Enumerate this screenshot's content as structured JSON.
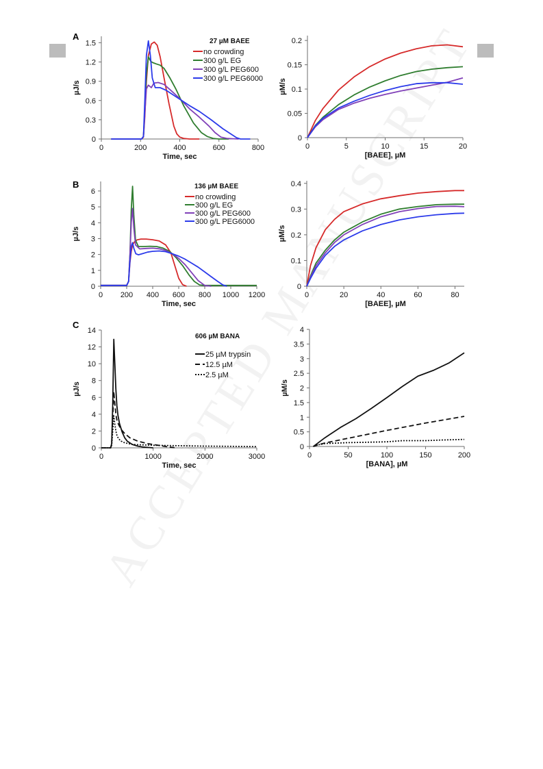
{
  "figure": {
    "panel_labels": [
      "A",
      "B",
      "C"
    ],
    "watermark": "ACCEPTED MANUSCRIPT"
  },
  "chart_data": [
    {
      "id": "A-left",
      "type": "line",
      "title": "27 µM BAEE",
      "xlabel": "Time, sec",
      "ylabel": "µJ/s",
      "xlim": [
        0,
        800
      ],
      "ylim": [
        0,
        1.6
      ],
      "xticks": [
        0,
        200,
        400,
        600,
        800
      ],
      "yticks": [
        0,
        0.3,
        0.6,
        0.9,
        1.2,
        1.5
      ],
      "legend": "top-right",
      "grid": false,
      "series": [
        {
          "name": "no crowding",
          "color": "#d62a2a",
          "dash": "",
          "x": [
            50,
            150,
            205,
            215,
            222,
            230,
            240,
            255,
            270,
            285,
            300,
            320,
            345,
            370,
            385,
            400,
            420,
            450,
            500
          ],
          "y": [
            0,
            0,
            0,
            0.03,
            0.35,
            0.9,
            1.3,
            1.48,
            1.51,
            1.46,
            1.28,
            0.95,
            0.55,
            0.2,
            0.08,
            0.03,
            0.01,
            0,
            0
          ]
        },
        {
          "name": "300 g/L EG",
          "color": "#2f7d2f",
          "dash": "",
          "x": [
            50,
            150,
            205,
            215,
            222,
            230,
            240,
            252,
            262,
            280,
            300,
            320,
            350,
            380,
            420,
            470,
            510,
            540,
            570,
            600,
            650
          ],
          "y": [
            0,
            0,
            0,
            0.04,
            0.45,
            1.0,
            1.28,
            1.21,
            1.19,
            1.17,
            1.15,
            1.1,
            0.95,
            0.78,
            0.52,
            0.25,
            0.1,
            0.04,
            0.01,
            0,
            0
          ]
        },
        {
          "name": "300 g/L PEG600",
          "color": "#8040b8",
          "dash": "",
          "x": [
            50,
            150,
            205,
            215,
            222,
            230,
            240,
            255,
            268,
            290,
            320,
            350,
            400,
            450,
            500,
            550,
            580,
            610,
            640,
            700
          ],
          "y": [
            0,
            0,
            0,
            0.04,
            0.4,
            0.78,
            0.84,
            0.8,
            0.87,
            0.88,
            0.85,
            0.77,
            0.63,
            0.47,
            0.34,
            0.2,
            0.1,
            0.03,
            0.01,
            0
          ]
        },
        {
          "name": "300 g/L PEG6000",
          "color": "#2b3aea",
          "dash": "",
          "x": [
            50,
            150,
            205,
            215,
            222,
            230,
            240,
            250,
            260,
            275,
            300,
            330,
            360,
            400,
            450,
            500,
            560,
            620,
            660,
            690,
            710,
            760
          ],
          "y": [
            0,
            0,
            0,
            0.04,
            0.6,
            1.3,
            1.53,
            1.3,
            0.95,
            0.8,
            0.8,
            0.76,
            0.7,
            0.62,
            0.52,
            0.43,
            0.3,
            0.16,
            0.08,
            0.02,
            0,
            0
          ]
        }
      ]
    },
    {
      "id": "A-right",
      "type": "line",
      "title": "",
      "xlabel": "[BAEE], µM",
      "ylabel": "µM/s",
      "xlim": [
        0,
        20
      ],
      "ylim": [
        0,
        0.21
      ],
      "xticks": [
        0,
        5,
        10,
        15,
        20
      ],
      "yticks": [
        0,
        0.05,
        0.1,
        0.15,
        0.2
      ],
      "grid": false,
      "series": [
        {
          "name": "",
          "color": "#d62a2a",
          "dash": "",
          "x": [
            0,
            1,
            2,
            4,
            6,
            8,
            10,
            12,
            14,
            16,
            18,
            20
          ],
          "y": [
            0,
            0.035,
            0.06,
            0.098,
            0.125,
            0.146,
            0.162,
            0.174,
            0.183,
            0.189,
            0.191,
            0.187
          ]
        },
        {
          "name": "",
          "color": "#2f7d2f",
          "dash": "",
          "x": [
            0,
            1,
            2,
            4,
            6,
            8,
            10,
            12,
            14,
            16,
            18,
            20
          ],
          "y": [
            0,
            0.025,
            0.042,
            0.068,
            0.088,
            0.104,
            0.117,
            0.128,
            0.136,
            0.141,
            0.144,
            0.146
          ]
        },
        {
          "name": "",
          "color": "#8040b8",
          "dash": "",
          "x": [
            0,
            1,
            2,
            4,
            6,
            8,
            10,
            12,
            14,
            16,
            18,
            20
          ],
          "y": [
            0,
            0.022,
            0.037,
            0.058,
            0.071,
            0.081,
            0.089,
            0.096,
            0.102,
            0.108,
            0.114,
            0.123
          ]
        },
        {
          "name": "",
          "color": "#2b3aea",
          "dash": "",
          "x": [
            0,
            1,
            2,
            4,
            6,
            8,
            10,
            12,
            14,
            16,
            18,
            20
          ],
          "y": [
            0,
            0.024,
            0.04,
            0.061,
            0.075,
            0.087,
            0.097,
            0.105,
            0.111,
            0.113,
            0.113,
            0.11
          ]
        }
      ]
    },
    {
      "id": "B-left",
      "type": "line",
      "title": "136 µM BAEE",
      "xlabel": "Time, sec",
      "ylabel": "µJ/s",
      "xlim": [
        0,
        1200
      ],
      "ylim": [
        0,
        6.6
      ],
      "xticks": [
        0,
        200,
        400,
        600,
        800,
        1000,
        1200
      ],
      "yticks": [
        0,
        1,
        2,
        3,
        4,
        5,
        6
      ],
      "legend": "top-right",
      "grid": false,
      "series": [
        {
          "name": "no crowding",
          "color": "#d62a2a",
          "dash": "",
          "x": [
            0,
            100,
            200,
            215,
            225,
            235,
            245,
            260,
            280,
            310,
            350,
            400,
            450,
            500,
            540,
            570,
            600,
            630,
            660
          ],
          "y": [
            0.05,
            0.05,
            0.05,
            0.3,
            1.5,
            2.2,
            2.6,
            2.8,
            2.92,
            2.97,
            2.97,
            2.93,
            2.85,
            2.6,
            2.1,
            1.3,
            0.5,
            0.1,
            0
          ]
        },
        {
          "name": "300 g/L EG",
          "color": "#2f7d2f",
          "dash": "",
          "x": [
            0,
            100,
            200,
            215,
            225,
            235,
            245,
            255,
            268,
            290,
            330,
            380,
            430,
            480,
            530,
            580,
            630,
            680,
            720,
            760,
            800,
            1000,
            1200
          ],
          "y": [
            0.05,
            0.05,
            0.05,
            0.3,
            2.0,
            4.8,
            6.3,
            4.5,
            2.9,
            2.5,
            2.5,
            2.52,
            2.5,
            2.4,
            2.2,
            1.8,
            1.3,
            0.7,
            0.3,
            0.08,
            0.05,
            0.05,
            0.05
          ]
        },
        {
          "name": "300 g/L PEG600",
          "color": "#8040b8",
          "dash": "",
          "x": [
            0,
            100,
            200,
            215,
            225,
            235,
            245,
            255,
            268,
            300,
            350,
            400,
            450,
            500,
            550,
            600,
            650,
            700,
            750,
            800,
            850
          ],
          "y": [
            0.05,
            0.05,
            0.05,
            0.3,
            2.0,
            4.0,
            4.9,
            3.7,
            2.6,
            2.35,
            2.38,
            2.4,
            2.36,
            2.25,
            2.05,
            1.75,
            1.35,
            0.85,
            0.35,
            0.05,
            0
          ]
        },
        {
          "name": "300 g/L PEG6000",
          "color": "#2b3aea",
          "dash": "",
          "x": [
            0,
            100,
            200,
            215,
            225,
            235,
            245,
            255,
            270,
            290,
            320,
            360,
            400,
            450,
            500,
            550,
            600,
            650,
            700,
            750,
            800,
            850,
            900,
            940,
            970
          ],
          "y": [
            0.05,
            0.05,
            0.05,
            0.3,
            1.6,
            2.5,
            2.75,
            2.4,
            2.05,
            1.98,
            2.05,
            2.15,
            2.2,
            2.22,
            2.18,
            2.05,
            1.9,
            1.7,
            1.45,
            1.2,
            0.9,
            0.6,
            0.3,
            0.08,
            0
          ]
        }
      ]
    },
    {
      "id": "B-right",
      "type": "line",
      "title": "",
      "xlabel": "[BAEE], µM",
      "ylabel": "µM/s",
      "xlim": [
        0,
        85
      ],
      "ylim": [
        0,
        0.41
      ],
      "xticks": [
        0,
        20,
        40,
        60,
        80
      ],
      "yticks": [
        0,
        0.1,
        0.2,
        0.3,
        0.4
      ],
      "grid": false,
      "series": [
        {
          "name": "",
          "color": "#d62a2a",
          "dash": "",
          "x": [
            0,
            2,
            5,
            10,
            15,
            20,
            30,
            40,
            50,
            60,
            70,
            80,
            85
          ],
          "y": [
            0,
            0.08,
            0.15,
            0.22,
            0.26,
            0.29,
            0.32,
            0.34,
            0.352,
            0.362,
            0.368,
            0.372,
            0.372
          ]
        },
        {
          "name": "",
          "color": "#2f7d2f",
          "dash": "",
          "x": [
            0,
            2,
            5,
            10,
            15,
            20,
            30,
            40,
            50,
            60,
            70,
            80,
            85
          ],
          "y": [
            0,
            0.04,
            0.09,
            0.14,
            0.18,
            0.21,
            0.25,
            0.28,
            0.3,
            0.31,
            0.317,
            0.319,
            0.319
          ]
        },
        {
          "name": "",
          "color": "#8040b8",
          "dash": "",
          "x": [
            0,
            2,
            5,
            10,
            15,
            20,
            30,
            40,
            50,
            60,
            70,
            80,
            85
          ],
          "y": [
            0,
            0.035,
            0.08,
            0.13,
            0.17,
            0.2,
            0.24,
            0.27,
            0.29,
            0.302,
            0.31,
            0.311,
            0.309
          ]
        },
        {
          "name": "",
          "color": "#2b3aea",
          "dash": "",
          "x": [
            0,
            2,
            5,
            10,
            15,
            20,
            30,
            40,
            50,
            60,
            70,
            80,
            85
          ],
          "y": [
            0,
            0.03,
            0.07,
            0.12,
            0.155,
            0.18,
            0.215,
            0.24,
            0.258,
            0.27,
            0.278,
            0.283,
            0.284
          ]
        }
      ]
    },
    {
      "id": "C-left",
      "type": "line",
      "title": "606 µM BANA",
      "xlabel": "Time, sec",
      "ylabel": "µJ/s",
      "xlim": [
        0,
        3000
      ],
      "ylim": [
        0,
        14
      ],
      "xticks": [
        0,
        1000,
        2000,
        3000
      ],
      "yticks": [
        0,
        2,
        4,
        6,
        8,
        10,
        12,
        14
      ],
      "legend": "top-right",
      "grid": false,
      "series": [
        {
          "name": "25 µM trypsin",
          "color": "#111111",
          "dash": "",
          "x": [
            0,
            180,
            200,
            220,
            240,
            260,
            280,
            300,
            320,
            350,
            400,
            450,
            500,
            600,
            700,
            800,
            900,
            1000
          ],
          "y": [
            0,
            0,
            0.5,
            5,
            12.9,
            10,
            7,
            5,
            3.9,
            2.9,
            1.9,
            1.2,
            0.8,
            0.4,
            0.2,
            0.1,
            0.05,
            0
          ]
        },
        {
          "name": "12.5 µM",
          "color": "#111111",
          "dash": "7,4",
          "x": [
            0,
            180,
            200,
            220,
            240,
            260,
            280,
            300,
            330,
            380,
            450,
            550,
            700,
            900,
            1100,
            1300,
            1450
          ],
          "y": [
            0,
            0,
            0.5,
            3.5,
            6.7,
            5.2,
            4.0,
            3.3,
            2.8,
            2.2,
            1.7,
            1.2,
            0.8,
            0.5,
            0.3,
            0.1,
            0
          ]
        },
        {
          "name": "2.5 µM",
          "color": "#111111",
          "dash": "2,2",
          "x": [
            0,
            180,
            200,
            220,
            240,
            260,
            280,
            300,
            330,
            380,
            450,
            600,
            800,
            1000,
            1500,
            2000,
            2500,
            3000
          ],
          "y": [
            0,
            0,
            0.3,
            2.0,
            3.8,
            2.8,
            2.0,
            1.5,
            1.1,
            0.8,
            0.6,
            0.4,
            0.35,
            0.3,
            0.25,
            0.2,
            0.18,
            0.15
          ]
        }
      ]
    },
    {
      "id": "C-right",
      "type": "line",
      "title": "",
      "xlabel": "[BANA], µM",
      "ylabel": "µM/s",
      "xlim": [
        0,
        200
      ],
      "ylim": [
        0,
        4
      ],
      "xticks": [
        0,
        50,
        100,
        150,
        200
      ],
      "yticks": [
        0,
        0.5,
        1,
        1.5,
        2,
        2.5,
        3,
        3.5,
        4
      ],
      "grid": false,
      "series": [
        {
          "name": "",
          "color": "#111111",
          "dash": "",
          "x": [
            5,
            10,
            20,
            40,
            60,
            80,
            100,
            120,
            140,
            150,
            160,
            180,
            200
          ],
          "y": [
            0,
            0.1,
            0.3,
            0.65,
            0.95,
            1.3,
            1.67,
            2.05,
            2.4,
            2.5,
            2.6,
            2.85,
            3.2
          ]
        },
        {
          "name": "",
          "color": "#111111",
          "dash": "7,4",
          "x": [
            5,
            10,
            20,
            50,
            100,
            150,
            200
          ],
          "y": [
            0,
            0.05,
            0.12,
            0.28,
            0.55,
            0.8,
            1.03
          ]
        },
        {
          "name": "",
          "color": "#111111",
          "dash": "2,2",
          "x": [
            5,
            10,
            20,
            50,
            100,
            120,
            150,
            170,
            200
          ],
          "y": [
            0,
            0.05,
            0.1,
            0.13,
            0.16,
            0.2,
            0.2,
            0.22,
            0.24
          ]
        }
      ]
    }
  ]
}
